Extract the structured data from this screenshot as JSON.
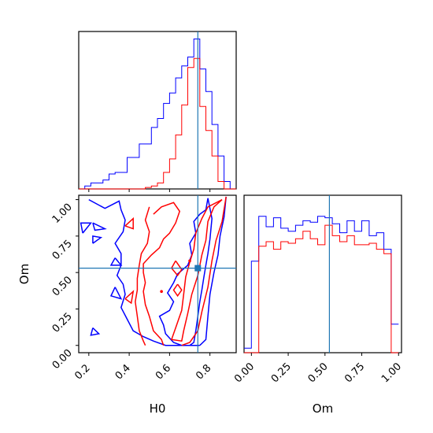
{
  "chart_data": {
    "type": "corner",
    "parameters": [
      "H0",
      "Om"
    ],
    "truth": {
      "H0": 0.74,
      "Om": 0.53
    },
    "colors": {
      "blue": "#0000ff",
      "red": "#ff0000",
      "truth": "#1f77b4"
    },
    "axes": [
      {
        "panel": "H0-marginal",
        "type": "histogram",
        "x_range": [
          0.15,
          0.93
        ],
        "x_ticks": [
          0.2,
          0.4,
          0.6,
          0.8
        ],
        "y_range": [
          0,
          1.05
        ],
        "series": [
          {
            "color": "blue",
            "edges": [
              0.15,
              0.18,
              0.21,
              0.24,
              0.27,
              0.3,
              0.33,
              0.36,
              0.39,
              0.42,
              0.45,
              0.48,
              0.51,
              0.54,
              0.57,
              0.6,
              0.63,
              0.66,
              0.69,
              0.72,
              0.75,
              0.78,
              0.81,
              0.84,
              0.87,
              0.9,
              0.93
            ],
            "values": [
              0.0,
              0.02,
              0.04,
              0.04,
              0.06,
              0.1,
              0.11,
              0.11,
              0.21,
              0.21,
              0.3,
              0.3,
              0.41,
              0.47,
              0.57,
              0.64,
              0.74,
              0.82,
              0.88,
              1.0,
              0.8,
              0.65,
              0.43,
              0.22,
              0.05,
              0.0
            ]
          },
          {
            "color": "red",
            "edges": [
              0.15,
              0.18,
              0.21,
              0.24,
              0.27,
              0.3,
              0.33,
              0.36,
              0.39,
              0.42,
              0.45,
              0.48,
              0.51,
              0.54,
              0.57,
              0.6,
              0.63,
              0.66,
              0.69,
              0.72,
              0.75,
              0.78,
              0.81,
              0.84,
              0.87,
              0.9,
              0.93
            ],
            "values": [
              0.0,
              0.0,
              0.0,
              0.0,
              0.0,
              0.0,
              0.0,
              0.0,
              0.0,
              0.0,
              0.0,
              0.01,
              0.02,
              0.04,
              0.11,
              0.2,
              0.36,
              0.56,
              0.81,
              0.87,
              0.55,
              0.39,
              0.22,
              0.05,
              0.0,
              0.0
            ]
          }
        ],
        "truth_vline": 0.74
      },
      {
        "panel": "H0-Om",
        "type": "contour",
        "x_label": "H0",
        "y_label": "Om",
        "x_range": [
          0.15,
          0.93
        ],
        "y_range": [
          -0.05,
          1.03
        ],
        "x_ticks": [
          0.2,
          0.4,
          0.6,
          0.8
        ],
        "y_ticks": [
          0.0,
          0.25,
          0.5,
          0.75,
          1.0
        ],
        "y_tick_labels": [
          "0.00",
          "0.25",
          "0.50",
          "0.75",
          "1.00"
        ],
        "truth_point": [
          0.74,
          0.53
        ],
        "blue_contours": [
          [
            [
              0.2,
              1.0
            ],
            [
              0.28,
              0.94
            ],
            [
              0.35,
              0.99
            ],
            [
              0.36,
              0.93
            ],
            [
              0.38,
              0.86
            ],
            [
              0.37,
              0.78
            ],
            [
              0.33,
              0.7
            ],
            [
              0.36,
              0.63
            ],
            [
              0.36,
              0.55
            ],
            [
              0.34,
              0.48
            ],
            [
              0.37,
              0.42
            ],
            [
              0.38,
              0.35
            ],
            [
              0.36,
              0.26
            ],
            [
              0.39,
              0.18
            ],
            [
              0.42,
              0.1
            ],
            [
              0.47,
              0.06
            ],
            [
              0.52,
              0.03
            ],
            [
              0.58,
              0.0
            ],
            [
              0.7,
              0.0
            ],
            [
              0.75,
              0.0
            ]
          ],
          [
            [
              0.79,
              1.01
            ],
            [
              0.81,
              0.87
            ],
            [
              0.8,
              0.73
            ],
            [
              0.79,
              0.63
            ],
            [
              0.78,
              0.55
            ],
            [
              0.77,
              0.47
            ],
            [
              0.76,
              0.38
            ],
            [
              0.75,
              0.3
            ],
            [
              0.74,
              0.2
            ],
            [
              0.73,
              0.1
            ],
            [
              0.72,
              0.02
            ],
            [
              0.7,
              0.0
            ],
            [
              0.66,
              0.0
            ],
            [
              0.62,
              0.02
            ],
            [
              0.58,
              0.08
            ],
            [
              0.57,
              0.14
            ],
            [
              0.55,
              0.2
            ],
            [
              0.6,
              0.24
            ],
            [
              0.62,
              0.3
            ],
            [
              0.59,
              0.36
            ],
            [
              0.62,
              0.43
            ],
            [
              0.64,
              0.49
            ],
            [
              0.69,
              0.55
            ],
            [
              0.71,
              0.62
            ],
            [
              0.7,
              0.7
            ],
            [
              0.73,
              0.77
            ],
            [
              0.72,
              0.85
            ],
            [
              0.75,
              0.9
            ],
            [
              0.78,
              0.93
            ],
            [
              0.79,
              1.01
            ]
          ],
          [
            [
              0.88,
              1.02
            ],
            [
              0.87,
              0.88
            ],
            [
              0.85,
              0.75
            ],
            [
              0.84,
              0.62
            ],
            [
              0.82,
              0.5
            ],
            [
              0.8,
              0.35
            ],
            [
              0.79,
              0.2
            ],
            [
              0.78,
              0.04
            ],
            [
              0.75,
              0.0
            ]
          ],
          [
            [
              0.22,
              0.7
            ],
            [
              0.26,
              0.74
            ],
            [
              0.22,
              0.75
            ],
            [
              0.22,
              0.7
            ]
          ],
          [
            [
              0.22,
              0.84
            ],
            [
              0.28,
              0.8
            ],
            [
              0.23,
              0.79
            ],
            [
              0.22,
              0.84
            ]
          ],
          [
            [
              0.17,
              0.77
            ],
            [
              0.21,
              0.84
            ],
            [
              0.16,
              0.84
            ],
            [
              0.17,
              0.77
            ]
          ],
          [
            [
              0.33,
              0.6
            ],
            [
              0.36,
              0.55
            ],
            [
              0.31,
              0.55
            ],
            [
              0.33,
              0.6
            ]
          ],
          [
            [
              0.33,
              0.4
            ],
            [
              0.36,
              0.32
            ],
            [
              0.31,
              0.34
            ],
            [
              0.33,
              0.4
            ]
          ],
          [
            [
              0.22,
              0.12
            ],
            [
              0.25,
              0.08
            ],
            [
              0.21,
              0.07
            ],
            [
              0.22,
              0.12
            ]
          ]
        ],
        "red_contours": [
          [
            [
              0.52,
              0.9
            ],
            [
              0.56,
              0.95
            ],
            [
              0.62,
              0.98
            ],
            [
              0.65,
              0.92
            ],
            [
              0.63,
              0.84
            ],
            [
              0.6,
              0.77
            ],
            [
              0.57,
              0.73
            ],
            [
              0.55,
              0.67
            ],
            [
              0.51,
              0.62
            ],
            [
              0.47,
              0.56
            ],
            [
              0.47,
              0.5
            ],
            [
              0.48,
              0.43
            ],
            [
              0.47,
              0.37
            ],
            [
              0.48,
              0.28
            ],
            [
              0.5,
              0.2
            ],
            [
              0.52,
              0.1
            ],
            [
              0.56,
              0.04
            ],
            [
              0.57,
              0.0
            ]
          ],
          [
            [
              0.5,
              0.95
            ],
            [
              0.48,
              0.86
            ],
            [
              0.5,
              0.78
            ],
            [
              0.49,
              0.7
            ],
            [
              0.46,
              0.63
            ],
            [
              0.45,
              0.55
            ],
            [
              0.44,
              0.46
            ],
            [
              0.44,
              0.38
            ],
            [
              0.43,
              0.3
            ],
            [
              0.44,
              0.2
            ],
            [
              0.45,
              0.1
            ],
            [
              0.47,
              0.03
            ],
            [
              0.48,
              0.0
            ]
          ],
          [
            [
              0.86,
              1.0
            ],
            [
              0.82,
              0.95
            ],
            [
              0.79,
              0.85
            ],
            [
              0.78,
              0.72
            ],
            [
              0.76,
              0.62
            ],
            [
              0.74,
              0.48
            ],
            [
              0.71,
              0.35
            ],
            [
              0.69,
              0.22
            ],
            [
              0.67,
              0.1
            ],
            [
              0.66,
              0.03
            ],
            [
              0.61,
              0.04
            ],
            [
              0.63,
              0.12
            ],
            [
              0.66,
              0.24
            ],
            [
              0.67,
              0.35
            ],
            [
              0.68,
              0.47
            ],
            [
              0.7,
              0.57
            ],
            [
              0.72,
              0.66
            ],
            [
              0.73,
              0.77
            ],
            [
              0.76,
              0.87
            ],
            [
              0.79,
              0.95
            ],
            [
              0.86,
              1.0
            ]
          ],
          [
            [
              0.88,
              1.02
            ],
            [
              0.86,
              0.85
            ],
            [
              0.83,
              0.72
            ],
            [
              0.81,
              0.58
            ],
            [
              0.79,
              0.4
            ],
            [
              0.76,
              0.23
            ],
            [
              0.74,
              0.1
            ],
            [
              0.7,
              0.02
            ],
            [
              0.66,
              0.0
            ]
          ],
          [
            [
              0.63,
              0.58
            ],
            [
              0.66,
              0.52
            ],
            [
              0.64,
              0.48
            ],
            [
              0.61,
              0.53
            ],
            [
              0.63,
              0.58
            ]
          ],
          [
            [
              0.64,
              0.42
            ],
            [
              0.66,
              0.38
            ],
            [
              0.64,
              0.34
            ],
            [
              0.62,
              0.38
            ],
            [
              0.64,
              0.42
            ]
          ],
          [
            [
              0.38,
              0.82
            ],
            [
              0.42,
              0.87
            ],
            [
              0.42,
              0.8
            ],
            [
              0.38,
              0.82
            ]
          ],
          [
            [
              0.38,
              0.32
            ],
            [
              0.42,
              0.37
            ],
            [
              0.41,
              0.29
            ],
            [
              0.38,
              0.32
            ]
          ]
        ],
        "red_dots": [
          [
            0.7,
            0.58
          ],
          [
            0.56,
            0.37
          ]
        ]
      },
      {
        "panel": "Om-marginal",
        "type": "histogram",
        "x_label": "Om",
        "x_range": [
          -0.05,
          1.02
        ],
        "x_ticks": [
          0.0,
          0.25,
          0.5,
          0.75,
          1.0
        ],
        "x_tick_labels": [
          "0.00",
          "0.25",
          "0.50",
          "0.75",
          "1.00"
        ],
        "y_range": [
          0,
          1.05
        ],
        "series": [
          {
            "color": "blue",
            "edges": [
              -0.05,
              0.0,
              0.05,
              0.1,
              0.15,
              0.2,
              0.25,
              0.3,
              0.35,
              0.4,
              0.45,
              0.5,
              0.55,
              0.6,
              0.65,
              0.7,
              0.75,
              0.8,
              0.85,
              0.9,
              0.95,
              1.0
            ],
            "values": [
              0.03,
              0.61,
              0.91,
              0.84,
              0.9,
              0.83,
              0.81,
              0.85,
              0.88,
              0.87,
              0.91,
              0.9,
              0.86,
              0.8,
              0.88,
              0.81,
              0.88,
              0.78,
              0.8,
              0.69,
              0.19
            ]
          },
          {
            "color": "red",
            "edges": [
              -0.05,
              0.0,
              0.05,
              0.1,
              0.15,
              0.2,
              0.25,
              0.3,
              0.35,
              0.4,
              0.45,
              0.5,
              0.55,
              0.6,
              0.65,
              0.7,
              0.75,
              0.8,
              0.85,
              0.9,
              0.95,
              1.0
            ],
            "values": [
              0.0,
              0.0,
              0.71,
              0.74,
              0.69,
              0.74,
              0.73,
              0.76,
              0.81,
              0.76,
              0.72,
              0.85,
              0.78,
              0.74,
              0.78,
              0.72,
              0.72,
              0.73,
              0.69,
              0.66,
              0.0
            ]
          }
        ],
        "truth_vline": 0.53
      }
    ]
  }
}
